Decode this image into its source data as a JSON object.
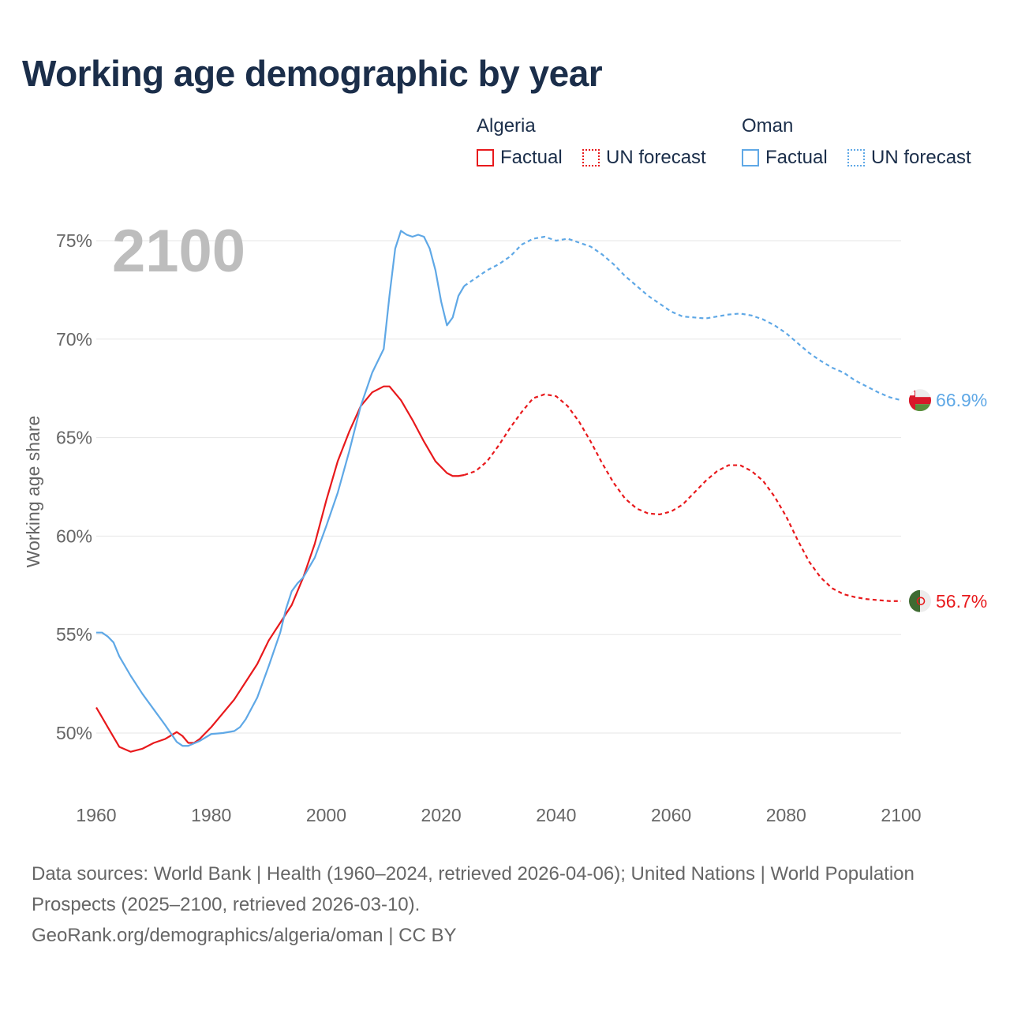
{
  "title": "Working age demographic by year",
  "legend": {
    "algeria": {
      "name": "Algeria",
      "factual": "Factual",
      "forecast": "UN forecast",
      "color": "#e8191c"
    },
    "oman": {
      "name": "Oman",
      "factual": "Factual",
      "forecast": "UN forecast",
      "color": "#5fa8e6"
    }
  },
  "footer": {
    "line1": "Data sources: World Bank | Health (1960–2024, retrieved 2026-04-06); United Nations | World Population Prospects (2025–2100, retrieved 2026-03-10).",
    "line2": "GeoRank.org/demographics/algeria/oman | CC BY"
  },
  "chart_data": {
    "type": "line",
    "title": "Working age demographic by year",
    "xlabel": "",
    "ylabel": "Working age share",
    "xlim": [
      1960,
      2100
    ],
    "ylim": [
      47,
      76.5
    ],
    "x_ticks": [
      1960,
      1980,
      2000,
      2020,
      2040,
      2060,
      2080,
      2100
    ],
    "y_ticks": [
      50,
      55,
      60,
      65,
      70,
      75
    ],
    "y_tick_labels": [
      "50%",
      "55%",
      "60%",
      "65%",
      "70%",
      "75%"
    ],
    "x_tick_labels": [
      "1960",
      "1980",
      "2000",
      "2020",
      "2040",
      "2060",
      "2080",
      "2100"
    ],
    "year_label": "2100",
    "forecast_start": 2024,
    "grid": true,
    "series": [
      {
        "name": "Algeria",
        "color": "#e8191c",
        "end_label": "56.7%",
        "points": [
          [
            1960,
            51.3
          ],
          [
            1962,
            50.3
          ],
          [
            1964,
            49.3
          ],
          [
            1966,
            49.05
          ],
          [
            1968,
            49.2
          ],
          [
            1970,
            49.5
          ],
          [
            1972,
            49.7
          ],
          [
            1974,
            50.05
          ],
          [
            1975,
            49.85
          ],
          [
            1976,
            49.5
          ],
          [
            1977,
            49.5
          ],
          [
            1978,
            49.7
          ],
          [
            1980,
            50.3
          ],
          [
            1982,
            51.0
          ],
          [
            1984,
            51.7
          ],
          [
            1986,
            52.6
          ],
          [
            1988,
            53.5
          ],
          [
            1990,
            54.7
          ],
          [
            1992,
            55.6
          ],
          [
            1994,
            56.5
          ],
          [
            1996,
            57.9
          ],
          [
            1998,
            59.6
          ],
          [
            2000,
            61.8
          ],
          [
            2002,
            63.8
          ],
          [
            2004,
            65.3
          ],
          [
            2006,
            66.6
          ],
          [
            2008,
            67.3
          ],
          [
            2010,
            67.6
          ],
          [
            2011,
            67.6
          ],
          [
            2013,
            66.9
          ],
          [
            2015,
            65.9
          ],
          [
            2017,
            64.8
          ],
          [
            2019,
            63.8
          ],
          [
            2021,
            63.2
          ],
          [
            2022,
            63.05
          ],
          [
            2023,
            63.05
          ],
          [
            2024,
            63.1
          ],
          [
            2026,
            63.3
          ],
          [
            2028,
            63.8
          ],
          [
            2030,
            64.6
          ],
          [
            2032,
            65.5
          ],
          [
            2034,
            66.3
          ],
          [
            2036,
            67.0
          ],
          [
            2038,
            67.2
          ],
          [
            2040,
            67.1
          ],
          [
            2042,
            66.6
          ],
          [
            2044,
            65.8
          ],
          [
            2046,
            64.8
          ],
          [
            2048,
            63.7
          ],
          [
            2050,
            62.7
          ],
          [
            2052,
            61.9
          ],
          [
            2054,
            61.4
          ],
          [
            2056,
            61.15
          ],
          [
            2058,
            61.1
          ],
          [
            2060,
            61.25
          ],
          [
            2062,
            61.6
          ],
          [
            2064,
            62.2
          ],
          [
            2066,
            62.8
          ],
          [
            2068,
            63.3
          ],
          [
            2070,
            63.6
          ],
          [
            2072,
            63.6
          ],
          [
            2074,
            63.3
          ],
          [
            2076,
            62.8
          ],
          [
            2078,
            62.0
          ],
          [
            2080,
            61.0
          ],
          [
            2082,
            59.8
          ],
          [
            2084,
            58.7
          ],
          [
            2086,
            57.9
          ],
          [
            2088,
            57.35
          ],
          [
            2090,
            57.05
          ],
          [
            2092,
            56.9
          ],
          [
            2094,
            56.8
          ],
          [
            2096,
            56.75
          ],
          [
            2098,
            56.7
          ],
          [
            2100,
            56.7
          ]
        ]
      },
      {
        "name": "Oman",
        "color": "#5fa8e6",
        "end_label": "66.9%",
        "points": [
          [
            1960,
            55.1
          ],
          [
            1961,
            55.1
          ],
          [
            1962,
            54.9
          ],
          [
            1963,
            54.6
          ],
          [
            1964,
            53.9
          ],
          [
            1966,
            52.9
          ],
          [
            1968,
            52.0
          ],
          [
            1970,
            51.2
          ],
          [
            1972,
            50.4
          ],
          [
            1974,
            49.55
          ],
          [
            1975,
            49.35
          ],
          [
            1976,
            49.35
          ],
          [
            1978,
            49.6
          ],
          [
            1980,
            49.95
          ],
          [
            1982,
            50.0
          ],
          [
            1984,
            50.1
          ],
          [
            1985,
            50.3
          ],
          [
            1986,
            50.7
          ],
          [
            1988,
            51.8
          ],
          [
            1990,
            53.4
          ],
          [
            1992,
            55.1
          ],
          [
            1993,
            56.3
          ],
          [
            1994,
            57.2
          ],
          [
            1995,
            57.6
          ],
          [
            1996,
            57.9
          ],
          [
            1998,
            58.9
          ],
          [
            2000,
            60.5
          ],
          [
            2002,
            62.2
          ],
          [
            2004,
            64.3
          ],
          [
            2006,
            66.6
          ],
          [
            2008,
            68.3
          ],
          [
            2010,
            69.5
          ],
          [
            2011,
            72.2
          ],
          [
            2012,
            74.6
          ],
          [
            2013,
            75.5
          ],
          [
            2014,
            75.3
          ],
          [
            2015,
            75.2
          ],
          [
            2016,
            75.3
          ],
          [
            2017,
            75.2
          ],
          [
            2018,
            74.6
          ],
          [
            2019,
            73.5
          ],
          [
            2020,
            71.9
          ],
          [
            2021,
            70.7
          ],
          [
            2022,
            71.1
          ],
          [
            2023,
            72.2
          ],
          [
            2024,
            72.7
          ],
          [
            2026,
            73.1
          ],
          [
            2028,
            73.5
          ],
          [
            2030,
            73.8
          ],
          [
            2032,
            74.2
          ],
          [
            2034,
            74.8
          ],
          [
            2036,
            75.1
          ],
          [
            2038,
            75.2
          ],
          [
            2040,
            75.0
          ],
          [
            2042,
            75.1
          ],
          [
            2044,
            74.9
          ],
          [
            2046,
            74.7
          ],
          [
            2048,
            74.3
          ],
          [
            2050,
            73.8
          ],
          [
            2052,
            73.2
          ],
          [
            2054,
            72.7
          ],
          [
            2056,
            72.2
          ],
          [
            2058,
            71.8
          ],
          [
            2060,
            71.4
          ],
          [
            2062,
            71.15
          ],
          [
            2064,
            71.1
          ],
          [
            2066,
            71.05
          ],
          [
            2068,
            71.15
          ],
          [
            2070,
            71.25
          ],
          [
            2072,
            71.3
          ],
          [
            2074,
            71.2
          ],
          [
            2076,
            71.0
          ],
          [
            2078,
            70.7
          ],
          [
            2080,
            70.3
          ],
          [
            2082,
            69.8
          ],
          [
            2084,
            69.3
          ],
          [
            2086,
            68.9
          ],
          [
            2088,
            68.55
          ],
          [
            2090,
            68.3
          ],
          [
            2092,
            67.9
          ],
          [
            2094,
            67.6
          ],
          [
            2096,
            67.3
          ],
          [
            2098,
            67.05
          ],
          [
            2100,
            66.9
          ]
        ]
      }
    ]
  }
}
